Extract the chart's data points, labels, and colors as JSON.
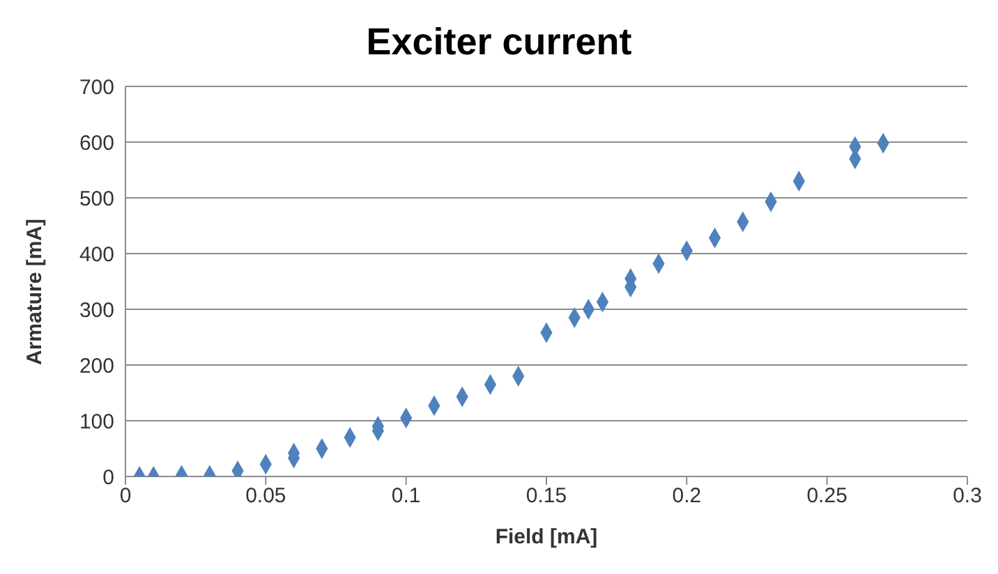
{
  "chart_data": {
    "type": "scatter",
    "title": "Exciter current",
    "xlabel": "Field [mA]",
    "ylabel": "Armature [mA]",
    "x": [
      0.005,
      0.01,
      0.02,
      0.03,
      0.04,
      0.05,
      0.06,
      0.06,
      0.07,
      0.08,
      0.09,
      0.09,
      0.1,
      0.11,
      0.12,
      0.13,
      0.14,
      0.15,
      0.16,
      0.165,
      0.17,
      0.18,
      0.18,
      0.19,
      0.2,
      0.21,
      0.22,
      0.23,
      0.24,
      0.26,
      0.26,
      0.27
    ],
    "series": [
      {
        "color": "#4f81bd",
        "values": [
          0,
          0,
          2,
          2,
          10,
          22,
          33,
          42,
          50,
          70,
          82,
          90,
          105,
          127,
          143,
          165,
          180,
          258,
          285,
          300,
          313,
          340,
          355,
          382,
          405,
          428,
          457,
          493,
          530,
          570,
          592,
          598
        ]
      }
    ],
    "xlim": [
      0,
      0.3
    ],
    "xticks": [
      0,
      0.05,
      0.1,
      0.15,
      0.2,
      0.25,
      0.3
    ],
    "ylim": [
      0,
      700
    ],
    "yticks": [
      0,
      100,
      200,
      300,
      400,
      500,
      600,
      700
    ],
    "grid": "y",
    "marker": "diamond"
  }
}
